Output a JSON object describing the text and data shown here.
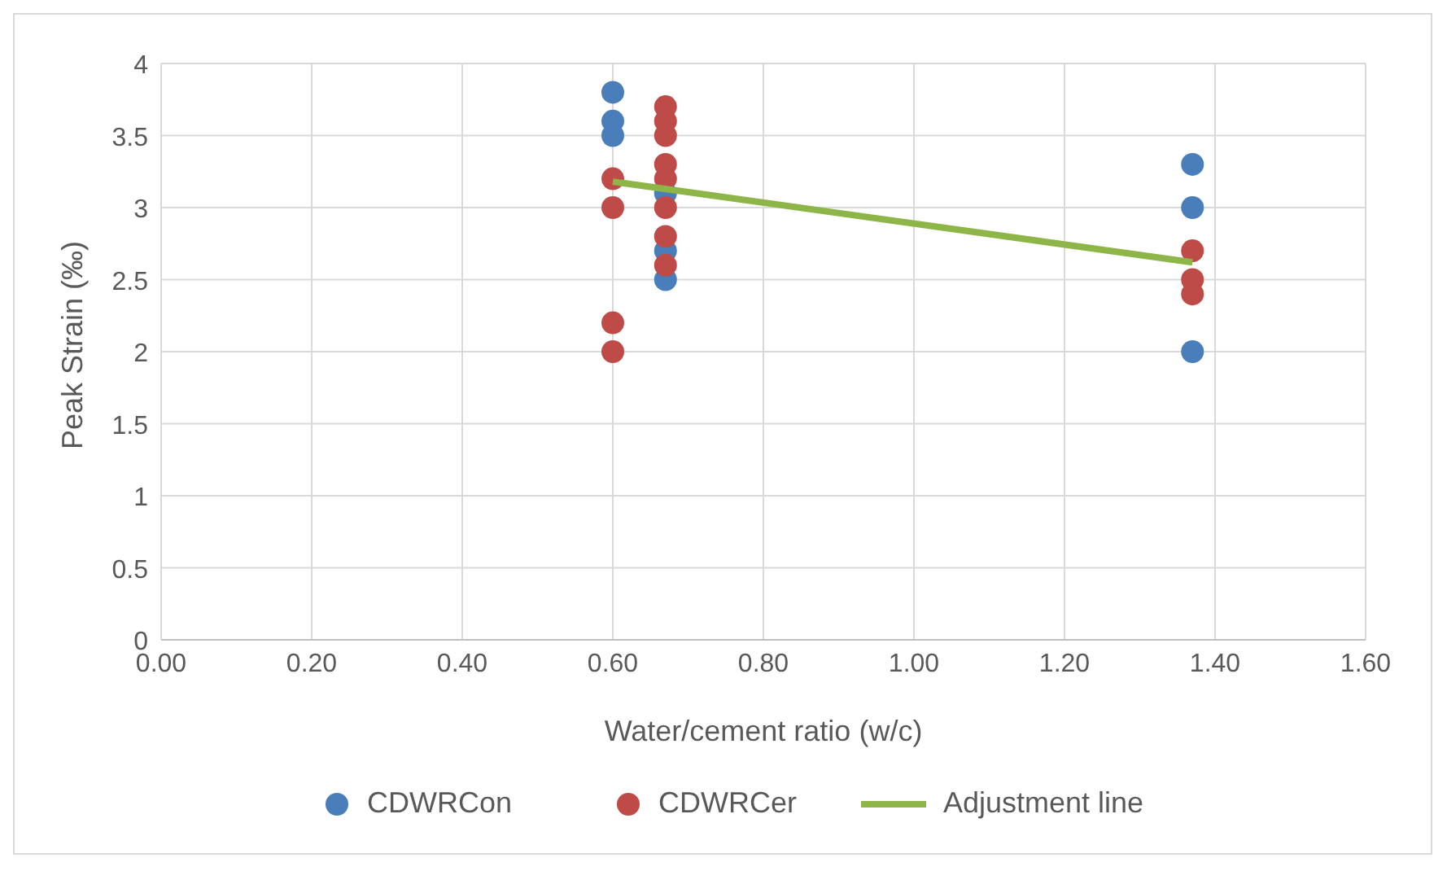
{
  "chart_data": {
    "type": "scatter",
    "xlabel": "Water/cement ratio (w/c)",
    "ylabel": "Peak Strain (‰)",
    "series": [
      {
        "name": "CDWRCon",
        "color": "#4a7ebb",
        "x": [
          0.6,
          0.6,
          0.6,
          0.67,
          0.67,
          0.67,
          1.37,
          1.37,
          1.37
        ],
        "values": [
          3.8,
          3.6,
          3.5,
          3.1,
          2.7,
          2.5,
          3.3,
          3.0,
          2.0
        ]
      },
      {
        "name": "CDWRCer",
        "color": "#be4b48",
        "x": [
          0.6,
          0.6,
          0.6,
          0.6,
          0.67,
          0.67,
          0.67,
          0.67,
          0.67,
          0.67,
          0.67,
          0.67,
          1.37,
          1.37,
          1.37
        ],
        "values": [
          3.2,
          3.0,
          2.2,
          2.0,
          3.7,
          3.6,
          3.5,
          3.3,
          3.2,
          3.0,
          2.8,
          2.6,
          2.7,
          2.5,
          2.4
        ]
      },
      {
        "name": "Adjustment line",
        "type": "line",
        "marker": "none",
        "color": "#8db547",
        "x": [
          0.6,
          1.37
        ],
        "values": [
          3.18,
          2.62
        ]
      }
    ],
    "xlim": [
      0,
      1.6
    ],
    "xticks": [
      {
        "value": 0,
        "label": "0.00"
      },
      {
        "value": 0.2,
        "label": "0.20"
      },
      {
        "value": 0.4,
        "label": "0.40"
      },
      {
        "value": 0.6,
        "label": "0.60"
      },
      {
        "value": 0.8,
        "label": "0.80"
      },
      {
        "value": 1,
        "label": "1.00"
      },
      {
        "value": 1.2,
        "label": "1.20"
      },
      {
        "value": 1.4,
        "label": "1.40"
      },
      {
        "value": 1.6,
        "label": "1.60"
      }
    ],
    "ylim": [
      0,
      4
    ],
    "yticks": [
      0,
      0.5,
      1,
      1.5,
      2,
      2.5,
      3,
      3.5,
      4
    ],
    "grid": true,
    "legend": "bottom",
    "marker": "circle"
  }
}
